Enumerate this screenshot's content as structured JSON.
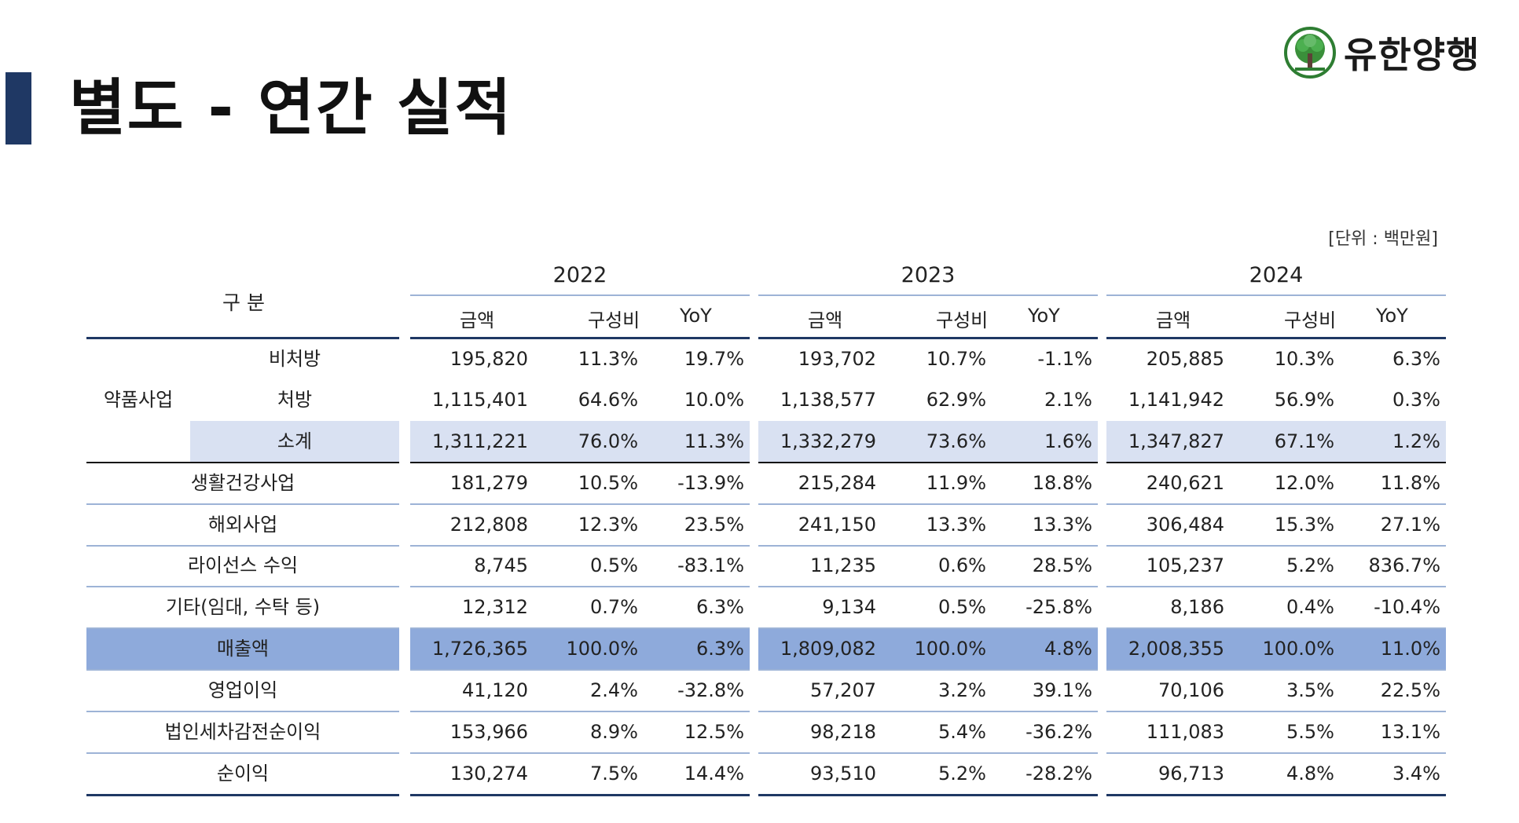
{
  "title": "별도 - 연간 실적",
  "logo": {
    "text": "유한양행",
    "icon": "willow-tree-icon",
    "color": "#2e7d32"
  },
  "unit": "[단위 : 백만원]",
  "header": {
    "category": "구 분",
    "years": [
      "2022",
      "2023",
      "2024"
    ],
    "columns": [
      "금액",
      "구성비",
      "YoY"
    ]
  },
  "rows": [
    {
      "group": "약품사업",
      "label": "비처방",
      "values": [
        [
          "195,820",
          "11.3%",
          "19.7%"
        ],
        [
          "193,702",
          "10.7%",
          "-1.1%"
        ],
        [
          "205,885",
          "10.3%",
          "6.3%"
        ]
      ]
    },
    {
      "group": "",
      "label": "처방",
      "values": [
        [
          "1,115,401",
          "64.6%",
          "10.0%"
        ],
        [
          "1,138,577",
          "62.9%",
          "2.1%"
        ],
        [
          "1,141,942",
          "56.9%",
          "0.3%"
        ]
      ]
    },
    {
      "group": "",
      "label": "소계",
      "values": [
        [
          "1,311,221",
          "76.0%",
          "11.3%"
        ],
        [
          "1,332,279",
          "73.6%",
          "1.6%"
        ],
        [
          "1,347,827",
          "67.1%",
          "1.2%"
        ]
      ]
    },
    {
      "label": "생활건강사업",
      "values": [
        [
          "181,279",
          "10.5%",
          "-13.9%"
        ],
        [
          "215,284",
          "11.9%",
          "18.8%"
        ],
        [
          "240,621",
          "12.0%",
          "11.8%"
        ]
      ]
    },
    {
      "label": "해외사업",
      "values": [
        [
          "212,808",
          "12.3%",
          "23.5%"
        ],
        [
          "241,150",
          "13.3%",
          "13.3%"
        ],
        [
          "306,484",
          "15.3%",
          "27.1%"
        ]
      ]
    },
    {
      "label": "라이선스 수익",
      "values": [
        [
          "8,745",
          "0.5%",
          "-83.1%"
        ],
        [
          "11,235",
          "0.6%",
          "28.5%"
        ],
        [
          "105,237",
          "5.2%",
          "836.7%"
        ]
      ]
    },
    {
      "label": "기타(임대, 수탁 등)",
      "values": [
        [
          "12,312",
          "0.7%",
          "6.3%"
        ],
        [
          "9,134",
          "0.5%",
          "-25.8%"
        ],
        [
          "8,186",
          "0.4%",
          "-10.4%"
        ]
      ]
    },
    {
      "label": "매출액",
      "values": [
        [
          "1,726,365",
          "100.0%",
          "6.3%"
        ],
        [
          "1,809,082",
          "100.0%",
          "4.8%"
        ],
        [
          "2,008,355",
          "100.0%",
          "11.0%"
        ]
      ]
    },
    {
      "label": "영업이익",
      "values": [
        [
          "41,120",
          "2.4%",
          "-32.8%"
        ],
        [
          "57,207",
          "3.2%",
          "39.1%"
        ],
        [
          "70,106",
          "3.5%",
          "22.5%"
        ]
      ]
    },
    {
      "label": "법인세차감전순이익",
      "values": [
        [
          "153,966",
          "8.9%",
          "12.5%"
        ],
        [
          "98,218",
          "5.4%",
          "-36.2%"
        ],
        [
          "111,083",
          "5.5%",
          "13.1%"
        ]
      ]
    },
    {
      "label": "순이익",
      "values": [
        [
          "130,274",
          "7.5%",
          "14.4%"
        ],
        [
          "93,510",
          "5.2%",
          "-28.2%"
        ],
        [
          "96,713",
          "4.8%",
          "3.4%"
        ]
      ]
    }
  ]
}
